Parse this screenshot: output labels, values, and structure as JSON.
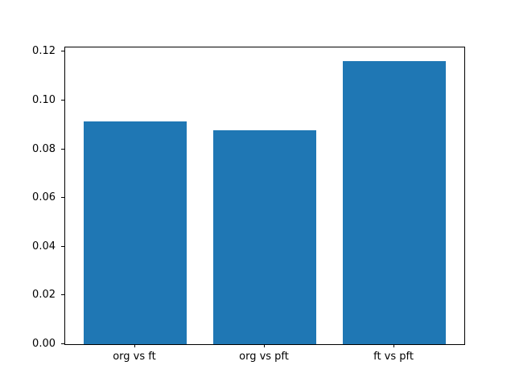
{
  "chart_data": {
    "type": "bar",
    "categories": [
      "org vs ft",
      "org vs pft",
      "ft vs pft"
    ],
    "values": [
      0.0915,
      0.0878,
      0.1162
    ],
    "title": "",
    "xlabel": "",
    "ylabel": "",
    "xlim": [
      -0.54,
      2.54
    ],
    "ylim": [
      0,
      0.1218
    ],
    "bar_width_units": 0.8,
    "yticks": [
      0,
      0.02,
      0.04,
      0.06,
      0.08,
      0.1,
      0.12
    ],
    "ytick_labels": [
      "0.00",
      "0.02",
      "0.04",
      "0.06",
      "0.08",
      "0.10",
      "0.12"
    ],
    "grid": false,
    "legend": null,
    "bar_color": "#1f77b4"
  },
  "figure": {
    "background_color": "#ffffff",
    "axes_background_color": "#ffffff",
    "spine_color": "#000000",
    "tick_color": "#000000"
  }
}
